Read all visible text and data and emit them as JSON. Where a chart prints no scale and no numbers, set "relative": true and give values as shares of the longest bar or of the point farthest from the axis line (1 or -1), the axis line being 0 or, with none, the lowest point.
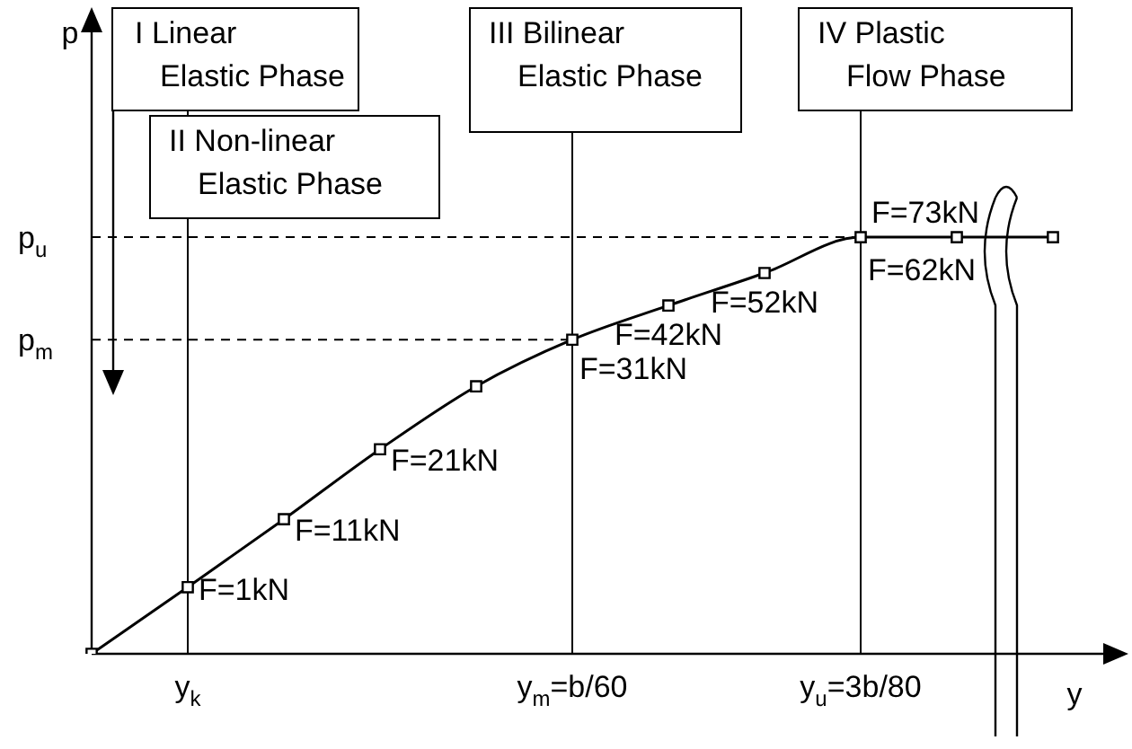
{
  "chart_data": {
    "type": "line",
    "relative": true,
    "xlabel": "y",
    "categories": [
      null,
      "y$_{k}$",
      null,
      null,
      null,
      "y$_{m}$=b/60",
      null,
      null,
      "y$_{u}$=3b/80",
      null,
      null
    ],
    "series": [
      {
        "color": "#000000",
        "values": [
          0,
          0.16,
          0.323,
          0.491,
          0.642,
          0.754,
          0.836,
          0.914,
          1,
          1,
          1
        ]
      }
    ],
    "ref_lines": [
      {
        "axis": "y",
        "value": 0.754,
        "label": "p$_{m}$",
        "line_style": "dashed"
      },
      {
        "axis": "y",
        "value": 1,
        "label": "p$_{u}$",
        "line_style": "dashed"
      },
      {
        "axis": "x",
        "value": "y$_{k}$",
        "line_style": "solid"
      },
      {
        "axis": "x",
        "value": "y$_{m}$=b/60",
        "line_style": "solid"
      },
      {
        "axis": "x",
        "value": "y$_{u}$=3b/80",
        "line_style": "solid"
      }
    ],
    "annotations": [
      "I Linear\nElastic Phase",
      "II Non-linear\nElastic Phase",
      "III Bilinear\nElastic Phase",
      "IV Plastic\nFlow Phase",
      "F=1kN",
      "F=11kN",
      "F=21kN",
      "F=31kN",
      "F=42kN",
      "F=52kN",
      "F=62kN",
      "F=73kN",
      "p"
    ],
    "marker": "square",
    "line_style": "solid",
    "grid": false,
    "legend": false
  }
}
